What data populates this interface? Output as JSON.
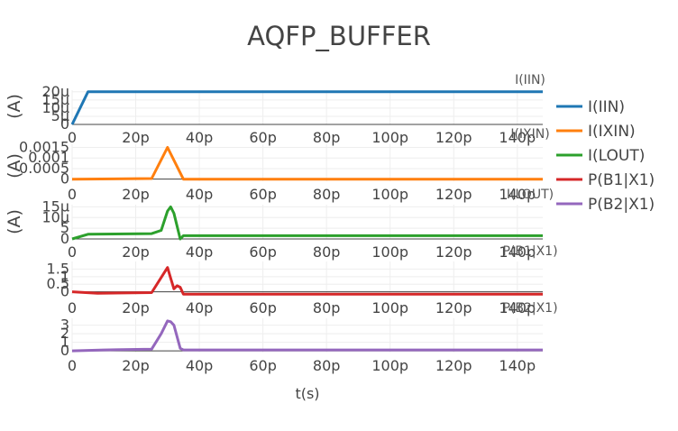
{
  "chart_data": {
    "type": "line",
    "title": "AQFP_BUFFER",
    "xlabel": "t(s)",
    "x_tick_labels": [
      "0",
      "20p",
      "40p",
      "60p",
      "80p",
      "100p",
      "120p",
      "140p"
    ],
    "x_ticks": [
      0,
      20,
      40,
      60,
      80,
      100,
      120,
      140
    ],
    "xlim": [
      0,
      148
    ],
    "x_unit": "ps",
    "legend_position": "right",
    "grid": true,
    "subplots": [
      {
        "name": "I(IIN)",
        "ylabel": "(A)",
        "color": "#1f77b4",
        "ylim": [
          0,
          21
        ],
        "y_ticks": [
          0,
          5,
          10,
          15,
          20
        ],
        "y_tick_labels": [
          "0",
          "5μ",
          "10μ",
          "15μ",
          "20μ"
        ],
        "x": [
          0,
          5,
          148
        ],
        "y": [
          0,
          20,
          20
        ]
      },
      {
        "name": "I(IXIN)",
        "ylabel": "(A)",
        "color": "#ff7f0e",
        "ylim": [
          -0.0001,
          0.00165
        ],
        "y_ticks": [
          0,
          0.0005,
          0.001,
          0.0015
        ],
        "y_tick_labels": [
          "0",
          "0.0005",
          "0.001",
          "0.0015"
        ],
        "x": [
          0,
          25,
          30,
          35,
          148
        ],
        "y": [
          0,
          3e-05,
          0.0015,
          0,
          0
        ]
      },
      {
        "name": "I(LOUT)",
        "ylabel": "(A)",
        "color": "#2ca02c",
        "ylim": [
          0,
          16
        ],
        "y_ticks": [
          0,
          5,
          10,
          15
        ],
        "y_tick_labels": [
          "0",
          "5",
          "10μ",
          "15μ"
        ],
        "x": [
          0,
          5,
          25,
          28,
          30,
          31,
          32,
          34,
          35,
          148
        ],
        "y": [
          0,
          2.2,
          2.5,
          4,
          13,
          15,
          12,
          0,
          1.5,
          1.5
        ]
      },
      {
        "name": "P(B1|X1)",
        "ylabel": "",
        "color": "#d62728",
        "ylim": [
          -0.2,
          2
        ],
        "y_ticks": [
          0,
          0.5,
          1,
          1.5
        ],
        "y_tick_labels": [
          "0",
          "0.5",
          "1",
          "1.5"
        ],
        "x": [
          0,
          8,
          25,
          30,
          31,
          32,
          33,
          34,
          35,
          148
        ],
        "y": [
          0,
          -0.1,
          -0.05,
          1.6,
          0.9,
          0.2,
          0.4,
          0.3,
          -0.15,
          -0.15
        ]
      },
      {
        "name": "P(B2|X1)",
        "ylabel": "",
        "color": "#9467bd",
        "ylim": [
          -0.2,
          3.8
        ],
        "y_ticks": [
          0,
          1,
          2,
          3
        ],
        "y_tick_labels": [
          "0",
          "1",
          "2",
          "3"
        ],
        "x": [
          0,
          10,
          25,
          28,
          30,
          31,
          32,
          34,
          35,
          148
        ],
        "y": [
          0,
          0.1,
          0.2,
          2,
          3.5,
          3.4,
          3,
          0.3,
          0.1,
          0.1
        ]
      }
    ],
    "legend": [
      "I(IIN)",
      "I(IXIN)",
      "I(LOUT)",
      "P(B1|X1)",
      "P(B2|X1)"
    ]
  }
}
